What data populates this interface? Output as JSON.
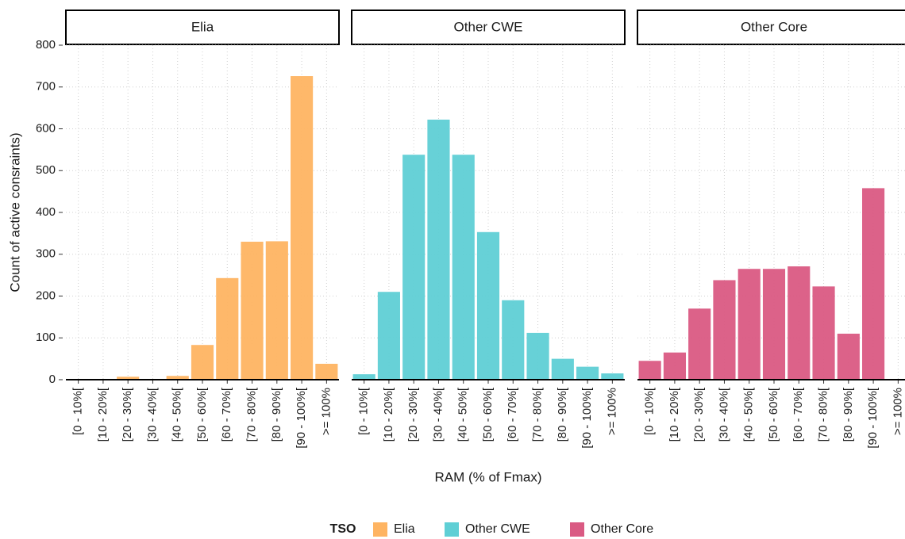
{
  "figure": {
    "ylabel": "Count of active consraints)",
    "xlabel": "RAM (% of Fmax)",
    "legend_title": "TSO"
  },
  "chart_data": [
    {
      "type": "bar",
      "title": "Elia",
      "name": "Elia",
      "color": "#FEB462",
      "categories": [
        "[0 - 10%[",
        "[10 - 20%[",
        "[20 - 30%[",
        "[30 - 40%[",
        "[40 - 50%[",
        "[50 - 60%[",
        "[60 - 70%[",
        "[70 - 80%[",
        "[80 - 90%[",
        "[90 - 100%[",
        ">= 100%"
      ],
      "values": [
        0,
        0,
        7,
        0,
        9,
        83,
        243,
        330,
        331,
        726,
        38
      ],
      "ylim": [
        0,
        800
      ],
      "yticks": [
        0,
        100,
        200,
        300,
        400,
        500,
        600,
        700,
        800
      ],
      "grid": true
    },
    {
      "type": "bar",
      "title": "Other CWE",
      "name": "Other CWE",
      "color": "#5FCFD5",
      "categories": [
        "[0 - 10%[",
        "[10 - 20%[",
        "[20 - 30%[",
        "[30 - 40%[",
        "[40 - 50%[",
        "[50 - 60%[",
        "[60 - 70%[",
        "[70 - 80%[",
        "[80 - 90%[",
        "[90 - 100%[",
        ">= 100%"
      ],
      "values": [
        13,
        210,
        538,
        622,
        538,
        353,
        190,
        112,
        50,
        31,
        15
      ],
      "ylim": [
        0,
        800
      ],
      "yticks": [
        0,
        100,
        200,
        300,
        400,
        500,
        600,
        700,
        800
      ],
      "grid": true
    },
    {
      "type": "bar",
      "title": "Other Core",
      "name": "Other Core",
      "color": "#DA5A83",
      "categories": [
        "[0 - 10%[",
        "[10 - 20%[",
        "[20 - 30%[",
        "[30 - 40%[",
        "[40 - 50%[",
        "[50 - 60%[",
        "[60 - 70%[",
        "[70 - 80%[",
        "[80 - 90%[",
        "[90 - 100%[",
        ">= 100%"
      ],
      "values": [
        45,
        65,
        170,
        238,
        265,
        265,
        271,
        223,
        110,
        458,
        0
      ],
      "ylim": [
        0,
        800
      ],
      "yticks": [
        0,
        100,
        200,
        300,
        400,
        500,
        600,
        700,
        800
      ],
      "grid": true
    }
  ]
}
